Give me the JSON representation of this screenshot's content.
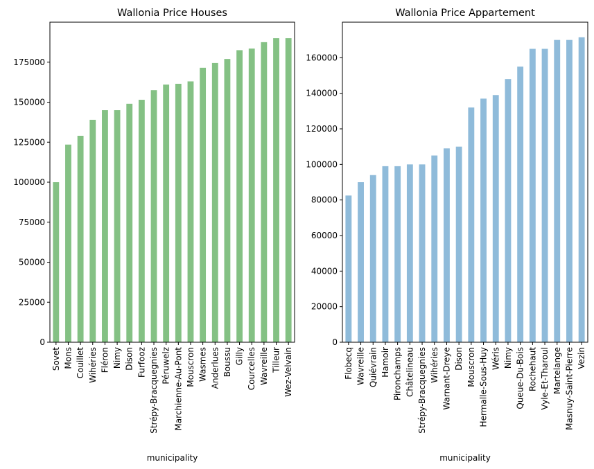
{
  "chart_data": [
    {
      "type": "bar",
      "title": "Wallonia  Price Houses",
      "xlabel": "municipality",
      "ylabel": "",
      "color": "#84c184",
      "ylim": [
        0,
        200000
      ],
      "yticks": [
        0,
        25000,
        50000,
        75000,
        100000,
        125000,
        150000,
        175000
      ],
      "categories": [
        "Sovet",
        "Mons",
        "Couillet",
        "Wihéries",
        "Fléron",
        "Nimy",
        "Dison",
        "Furfooz",
        "Strépy-Bracquegnies",
        "Péruwelz",
        "Marchienne-Au-Pont",
        "Mouscron",
        "Wasmes",
        "Anderlues",
        "Boussu",
        "Gilly",
        "Courcelles",
        "Wavreille",
        "Tilleur",
        "Wez-Velvain"
      ],
      "values": [
        100000,
        123500,
        129000,
        139000,
        145000,
        145000,
        149000,
        151500,
        157500,
        161000,
        161500,
        163000,
        171500,
        174500,
        177000,
        182500,
        183500,
        187500,
        190000,
        190000
      ]
    },
    {
      "type": "bar",
      "title": "Wallonia Price Appartement",
      "xlabel": "municipality",
      "ylabel": "",
      "color": "#8fbbda",
      "ylim": [
        0,
        180000
      ],
      "yticks": [
        0,
        20000,
        40000,
        60000,
        80000,
        100000,
        120000,
        140000,
        160000
      ],
      "categories": [
        "Flobecq",
        "Wavreille",
        "Quiévrain",
        "Hamoir",
        "Pironchamps",
        "Châtelineau",
        "Strépy-Bracquegnies",
        "Wihéries",
        "Warnant-Dreye",
        "Dison",
        "Mouscron",
        "Hermalle-Sous-Huy",
        "Wéris",
        "Nimy",
        "Queue-Du-Bois",
        "Rochehaut",
        "Vyle-Et-Tharoul",
        "Martelange",
        "Masnuy-Saint-Pierre",
        "Vezin"
      ],
      "values": [
        82500,
        90000,
        94000,
        99000,
        99000,
        100000,
        100000,
        105000,
        109000,
        110000,
        132000,
        137000,
        139000,
        148000,
        155000,
        165000,
        165000,
        170000,
        170000,
        171500
      ]
    }
  ]
}
